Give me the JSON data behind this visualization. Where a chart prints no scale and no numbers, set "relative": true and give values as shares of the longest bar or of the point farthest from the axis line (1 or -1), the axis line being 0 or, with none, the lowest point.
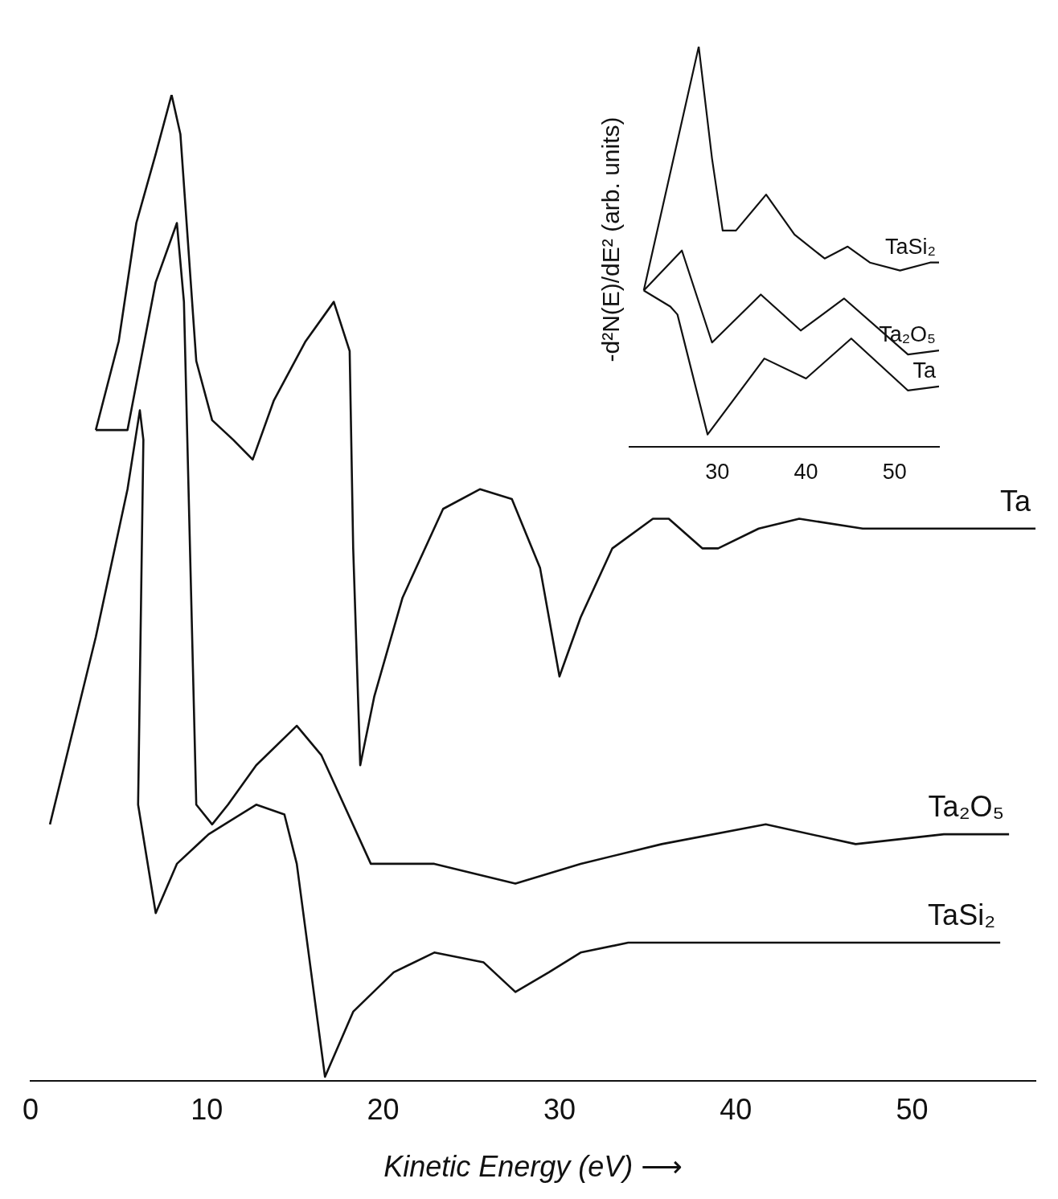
{
  "chart_data": [
    {
      "type": "line",
      "xlabel": "Kinetic Energy (eV) ⟶",
      "xlim": [
        0,
        57
      ],
      "xticks": [
        0,
        10,
        20,
        30,
        40,
        50
      ],
      "relative": true,
      "series": [
        {
          "name": "Ta",
          "color": "#111111",
          "x": [
            3.7,
            5.0,
            6.0,
            7.1,
            8.0,
            8.5,
            9.4,
            10.3,
            11.5,
            12.6,
            13.8,
            15.6,
            17.2,
            18.1,
            18.3,
            18.7,
            19.5,
            21.1,
            23.4,
            25.5,
            27.3,
            28.9,
            30.0,
            31.2,
            33.0,
            35.3,
            36.2,
            38.1,
            39.0,
            41.3,
            43.6,
            47.2,
            51.8,
            57.0
          ],
          "values": [
            0.66,
            0.75,
            0.87,
            0.94,
            1.0,
            0.96,
            0.73,
            0.67,
            0.65,
            0.63,
            0.69,
            0.75,
            0.79,
            0.74,
            0.54,
            0.32,
            0.39,
            0.49,
            0.58,
            0.6,
            0.59,
            0.52,
            0.41,
            0.47,
            0.54,
            0.57,
            0.57,
            0.54,
            0.54,
            0.56,
            0.57,
            0.56,
            0.56,
            0.56
          ]
        },
        {
          "name": "Ta₂O₅",
          "color": "#111111",
          "x": [
            3.7,
            5.5,
            7.1,
            8.3,
            8.7,
            9.4,
            10.3,
            11.2,
            12.8,
            15.1,
            16.5,
            19.3,
            22.9,
            27.5,
            31.2,
            35.8,
            41.7,
            46.8,
            51.8,
            55.5
          ],
          "values": [
            0.66,
            0.66,
            0.81,
            0.87,
            0.79,
            0.28,
            0.26,
            0.28,
            0.32,
            0.36,
            0.33,
            0.22,
            0.22,
            0.2,
            0.22,
            0.24,
            0.26,
            0.24,
            0.25,
            0.25
          ]
        },
        {
          "name": "TaSi₂",
          "color": "#111111",
          "x": [
            1.1,
            3.7,
            5.5,
            6.2,
            6.4,
            6.1,
            7.1,
            8.3,
            10.1,
            12.8,
            14.4,
            15.1,
            16.7,
            18.3,
            20.6,
            22.9,
            25.7,
            27.5,
            29.4,
            31.2,
            33.9,
            39.4,
            45.0,
            49.5,
            55.0
          ],
          "values": [
            0.26,
            0.45,
            0.6,
            0.68,
            0.65,
            0.28,
            0.17,
            0.22,
            0.25,
            0.28,
            0.27,
            0.22,
            0.004,
            0.07,
            0.11,
            0.13,
            0.12,
            0.09,
            0.11,
            0.13,
            0.14,
            0.14,
            0.14,
            0.14,
            0.14
          ]
        }
      ]
    },
    {
      "type": "line",
      "ylabel": "-d²N(E)/dE² (arb. units)",
      "xlim": [
        20,
        55
      ],
      "xticks": [
        30,
        40,
        50
      ],
      "relative": true,
      "series": [
        {
          "name": "TaSi₂",
          "color": "#111111",
          "x": [
            21.7,
            27.9,
            29.4,
            30.6,
            32.1,
            35.5,
            38.7,
            42.1,
            44.7,
            47.2,
            50.6,
            54,
            55
          ],
          "values": [
            0.39,
            1.0,
            0.72,
            0.54,
            0.54,
            0.63,
            0.53,
            0.47,
            0.5,
            0.46,
            0.44,
            0.46,
            0.46
          ]
        },
        {
          "name": "Ta₂O₅",
          "color": "#111111",
          "x": [
            21.7,
            26,
            29.4,
            34.9,
            39.4,
            44.3,
            51.5,
            55
          ],
          "values": [
            0.39,
            0.49,
            0.26,
            0.38,
            0.29,
            0.37,
            0.23,
            0.24
          ]
        },
        {
          "name": "Ta",
          "color": "#111111",
          "x": [
            21.7,
            24.7,
            25.5,
            28.9,
            35.3,
            40,
            45.1,
            51.5,
            55
          ],
          "values": [
            0.39,
            0.35,
            0.33,
            0.03,
            0.22,
            0.17,
            0.27,
            0.14,
            0.15
          ]
        }
      ]
    }
  ]
}
